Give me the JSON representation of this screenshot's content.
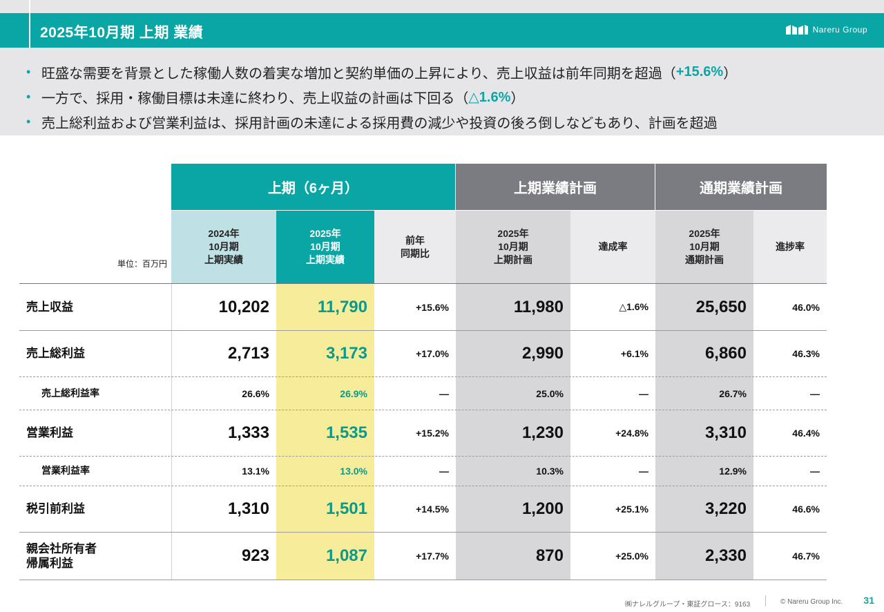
{
  "header": {
    "title": "2025年10月期 上期 業績",
    "logo_text": "Nareru Group"
  },
  "bullets": [
    {
      "text": "旺盛な需要を背景とした稼働人数の着実な増加と契約単価の上昇により、売上収益は前年同期を超過（",
      "highlight": "+15.6%",
      "after": "）"
    },
    {
      "text": "一方で、採用・稼働目標は未達に終わり、売上収益の計画は下回る（",
      "highlight": "△1.6%",
      "after": "）"
    },
    {
      "text": "売上総利益および営業利益は、採用計画の未達による採用費の減少や投資の後ろ倒しなどもあり、計画を超過",
      "highlight": "",
      "after": ""
    }
  ],
  "table": {
    "unit_label": "単位：百万円",
    "group_headers": [
      "上期（6ヶ月）",
      "上期業績計画",
      "通期業績計画"
    ],
    "column_headers": [
      "2024年\n10月期\n上期実績",
      "2025年\n10月期\n上期実績",
      "前年\n同期比",
      "2025年\n10月期\n上期計画",
      "達成率",
      "2025年\n10月期\n通期計画",
      "進捗率"
    ],
    "rows": [
      {
        "label": "売上収益",
        "values": [
          "10,202",
          "11,790",
          "+15.6%",
          "11,980",
          "△1.6%",
          "25,650",
          "46.0%"
        ]
      },
      {
        "label": "売上総利益",
        "values": [
          "2,713",
          "3,173",
          "+17.0%",
          "2,990",
          "+6.1%",
          "6,860",
          "46.3%"
        ]
      },
      {
        "label": "売上総利益率",
        "values": [
          "26.6%",
          "26.9%",
          "—",
          "25.0%",
          "—",
          "26.7%",
          "—"
        ]
      },
      {
        "label": "営業利益",
        "values": [
          "1,333",
          "1,535",
          "+15.2%",
          "1,230",
          "+24.8%",
          "3,310",
          "46.4%"
        ]
      },
      {
        "label": "営業利益率",
        "values": [
          "13.1%",
          "13.0%",
          "—",
          "10.3%",
          "—",
          "12.9%",
          "—"
        ]
      },
      {
        "label": "税引前利益",
        "values": [
          "1,310",
          "1,501",
          "+14.5%",
          "1,200",
          "+25.1%",
          "3,220",
          "46.6%"
        ]
      },
      {
        "label": "親会社所有者\n帰属利益",
        "values": [
          "923",
          "1,087",
          "+17.7%",
          "870",
          "+25.0%",
          "2,330",
          "46.7%"
        ]
      }
    ]
  },
  "colors": {
    "teal": "#0aa6a6",
    "gray_header": "#7b7b82",
    "light_blue": "#bfe0e4",
    "yellow": "#f7ec9a",
    "plan_gray": "#d7d7da",
    "sub_gray": "#ebebed"
  },
  "footer": {
    "company": "㈱ナレルグループ・東証グロース：9163",
    "copyright": "© Nareru Group Inc.",
    "page": "31"
  }
}
